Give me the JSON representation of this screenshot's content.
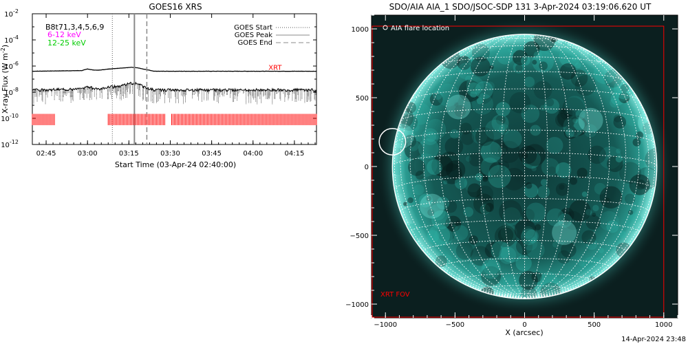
{
  "chart_data": [
    {
      "type": "line",
      "title": "GOES16 XRS",
      "xlabel": "Start Time (03-Apr-24 02:40:00)",
      "ylabel": "X-ray Flux (W m",
      "ylabel_sup": "-2",
      "ylabel_end": ")",
      "yscale": "log",
      "ylim": [
        1e-12,
        0.01
      ],
      "y_tick_labels": [
        {
          "base": "10",
          "exp": "-2",
          "value": 0.01
        },
        {
          "base": "10",
          "exp": "-4",
          "value": 0.0001
        },
        {
          "base": "10",
          "exp": "-6",
          "value": 1e-06
        },
        {
          "base": "10",
          "exp": "-8",
          "value": 1e-08
        },
        {
          "base": "10",
          "exp": "-10",
          "value": 1e-10
        },
        {
          "base": "10",
          "exp": "-12",
          "value": 1e-12
        }
      ],
      "xlim_minutes": [
        0,
        103
      ],
      "x_tick_labels": [
        {
          "label": "02:45",
          "minute": 5
        },
        {
          "label": "03:00",
          "minute": 20
        },
        {
          "label": "03:15",
          "minute": 35
        },
        {
          "label": "03:30",
          "minute": 50
        },
        {
          "label": "03:45",
          "minute": 65
        },
        {
          "label": "04:00",
          "minute": 80
        },
        {
          "label": "04:15",
          "minute": 95
        }
      ],
      "channel_labels": [
        {
          "text": "B8t71,3,4,5,6,9",
          "color": "#000000"
        },
        {
          "text": "6-12 keV",
          "color": "#ff00ff"
        },
        {
          "text": "12-25 keV",
          "color": "#00cc00"
        }
      ],
      "legend": [
        {
          "label": "GOES Start",
          "style": "dotted"
        },
        {
          "label": "GOES Peak",
          "style": "solid"
        },
        {
          "label": "GOES End",
          "style": "dashed"
        }
      ],
      "legend_position": "top-right",
      "event_lines_minutes": {
        "start": 29,
        "peak": 37,
        "end": 41.5
      },
      "series": [
        {
          "name": "long channel",
          "x": [
            0,
            18,
            20,
            22,
            24,
            28,
            32,
            36,
            38,
            40,
            42,
            44,
            103
          ],
          "y": [
            4e-07,
            4.5e-07,
            6e-07,
            5e-07,
            4.8e-07,
            6e-07,
            7e-07,
            8e-07,
            7.5e-07,
            6e-07,
            5e-07,
            4e-07,
            4e-07
          ]
        },
        {
          "name": "short channel",
          "x": [
            0,
            18,
            20,
            22,
            24,
            28,
            32,
            36,
            38,
            40,
            42,
            44,
            103
          ],
          "y": [
            1.5e-08,
            1.7e-08,
            3e-08,
            2e-08,
            1.8e-08,
            2.5e-08,
            3e-08,
            5e-08,
            4.5e-08,
            3e-08,
            2e-08,
            1.5e-08,
            1.5e-08
          ]
        }
      ],
      "annotation": {
        "text": "XRT",
        "color": "#ff0000",
        "minute": 88,
        "value": 4e-07
      },
      "xrt_coverage_minutes": [
        [
          0,
          8
        ],
        [
          27.5,
          48
        ],
        [
          50.5,
          103
        ]
      ],
      "xrt_color": "#ff0000"
    },
    {
      "type": "image",
      "title": "SDO/AIA AIA_1 SDO/JSOC-SDP 131  3-Apr-2024 03:19:06.620 UT",
      "xlabel": "X (arcsec)",
      "xlim": [
        -1100,
        1100
      ],
      "ylim": [
        -1100,
        1100
      ],
      "x_ticks": [
        -1000,
        -500,
        0,
        500,
        1000
      ],
      "y_ticks": [
        -1000,
        -500,
        0,
        500,
        1000
      ],
      "x_tick_labels": [
        "−1000",
        "−500",
        "0",
        "500",
        "1000"
      ],
      "y_tick_labels": [
        "−1000",
        "−500",
        "0",
        "500",
        "1000"
      ],
      "solar_radius_arcsec": 950,
      "legend_text": "AIA flare location",
      "flare_location_arcsec": [
        -950,
        180
      ],
      "flare_circle_radius_arcsec": 95,
      "fov_label": "XRT FOV",
      "fov_bounds_arcsec": {
        "x": [
          -1100,
          1000
        ],
        "y": [
          -1100,
          1020
        ]
      },
      "fov_color": "#ff0000",
      "grid_color": "#ffffff"
    }
  ],
  "footer": {
    "timestamp": "14-Apr-2024 23:48"
  }
}
